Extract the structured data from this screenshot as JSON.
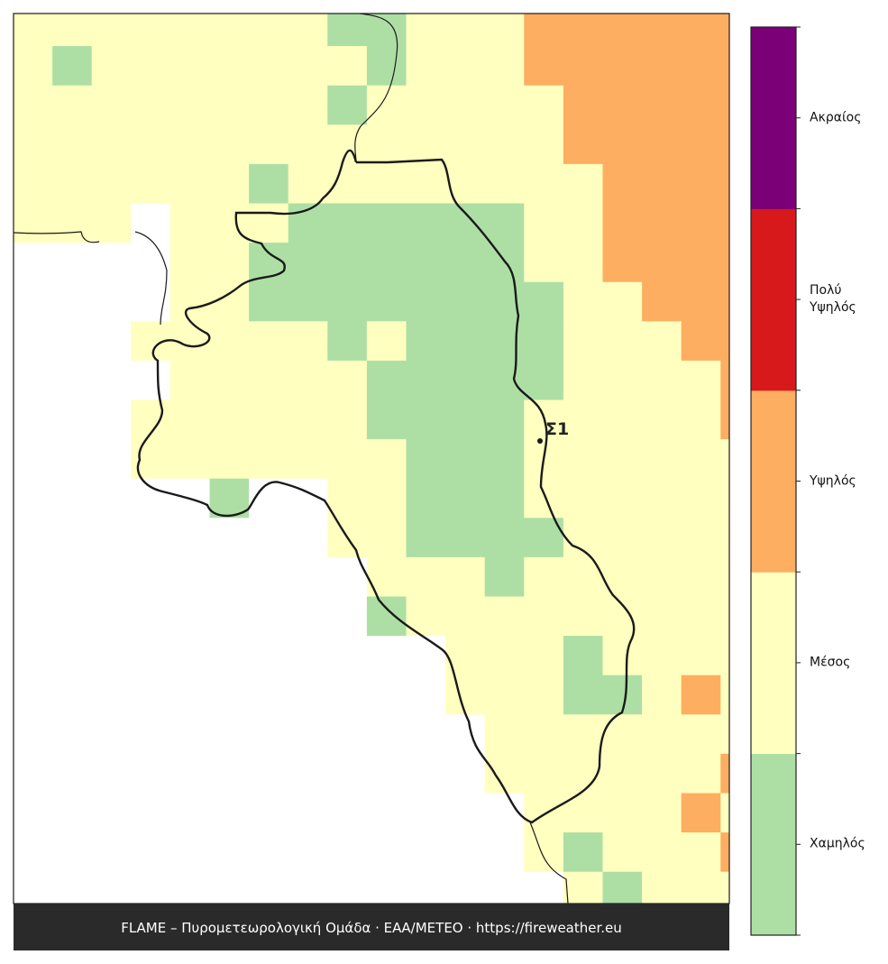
{
  "map": {
    "marker": {
      "label": "Σ1"
    },
    "footer": "FLAME – Πυρομετεωρολογική Ομάδα · ΕΑΑ/METEO · https://fireweather.eu",
    "legend": [
      {
        "label": "Χαμηλός",
        "color": "#addfa5"
      },
      {
        "label": "Μέσος",
        "color": "#ffffbf"
      },
      {
        "label": "Υψηλός",
        "color": "#fdae61"
      },
      {
        "label": "Πολύ Υψηλός",
        "color": "#d7191c"
      },
      {
        "label": "Ακραίος",
        "color": "#7b0077"
      }
    ],
    "cells": [
      [
        2,
        2,
        2,
        2,
        2,
        2,
        2,
        2,
        1,
        1,
        2,
        2,
        2,
        3,
        3,
        3,
        3,
        3,
        3
      ],
      [
        2,
        1,
        2,
        2,
        2,
        2,
        2,
        2,
        2,
        1,
        2,
        2,
        2,
        3,
        3,
        3,
        3,
        3,
        3
      ],
      [
        2,
        2,
        2,
        2,
        2,
        2,
        2,
        2,
        1,
        2,
        2,
        2,
        2,
        2,
        3,
        3,
        3,
        3,
        3
      ],
      [
        2,
        2,
        2,
        2,
        2,
        2,
        2,
        2,
        2,
        2,
        2,
        2,
        2,
        2,
        3,
        3,
        3,
        3,
        3
      ],
      [
        2,
        2,
        2,
        2,
        2,
        2,
        1,
        2,
        2,
        2,
        2,
        2,
        2,
        2,
        2,
        3,
        3,
        3,
        3
      ],
      [
        2,
        2,
        2,
        0,
        2,
        2,
        2,
        1,
        1,
        1,
        1,
        1,
        1,
        2,
        2,
        3,
        3,
        3,
        3
      ],
      [
        0,
        0,
        0,
        0,
        2,
        2,
        1,
        1,
        1,
        1,
        1,
        1,
        1,
        2,
        2,
        3,
        3,
        3,
        3
      ],
      [
        0,
        0,
        0,
        0,
        2,
        2,
        1,
        1,
        1,
        1,
        1,
        1,
        1,
        1,
        2,
        2,
        3,
        3,
        3
      ],
      [
        0,
        0,
        0,
        2,
        2,
        2,
        2,
        2,
        1,
        2,
        1,
        1,
        1,
        1,
        2,
        2,
        2,
        3,
        3
      ],
      [
        0,
        0,
        0,
        0,
        2,
        2,
        2,
        2,
        2,
        1,
        1,
        1,
        1,
        1,
        2,
        2,
        2,
        2,
        3
      ],
      [
        0,
        0,
        0,
        2,
        2,
        2,
        2,
        2,
        2,
        1,
        1,
        1,
        1,
        2,
        2,
        2,
        2,
        2,
        3
      ],
      [
        0,
        0,
        0,
        2,
        2,
        2,
        2,
        2,
        2,
        2,
        1,
        1,
        1,
        2,
        2,
        2,
        2,
        2,
        2
      ],
      [
        0,
        0,
        0,
        0,
        0,
        1,
        0,
        0,
        2,
        2,
        1,
        1,
        1,
        2,
        2,
        2,
        2,
        2,
        2
      ],
      [
        0,
        0,
        0,
        0,
        0,
        0,
        0,
        0,
        2,
        2,
        1,
        1,
        1,
        1,
        2,
        2,
        2,
        2,
        2
      ],
      [
        0,
        0,
        0,
        0,
        0,
        0,
        0,
        0,
        0,
        2,
        2,
        2,
        1,
        2,
        2,
        2,
        2,
        2,
        2
      ],
      [
        0,
        0,
        0,
        0,
        0,
        0,
        0,
        0,
        0,
        1,
        2,
        2,
        2,
        2,
        2,
        2,
        2,
        2,
        2
      ],
      [
        0,
        0,
        0,
        0,
        0,
        0,
        0,
        0,
        0,
        0,
        0,
        2,
        2,
        2,
        1,
        2,
        2,
        2,
        2
      ],
      [
        0,
        0,
        0,
        0,
        0,
        0,
        0,
        0,
        0,
        0,
        0,
        2,
        2,
        2,
        1,
        1,
        2,
        3,
        2
      ],
      [
        0,
        0,
        0,
        0,
        0,
        0,
        0,
        0,
        0,
        0,
        0,
        0,
        2,
        2,
        2,
        2,
        2,
        2,
        2
      ],
      [
        0,
        0,
        0,
        0,
        0,
        0,
        0,
        0,
        0,
        0,
        0,
        0,
        2,
        2,
        2,
        2,
        2,
        2,
        3
      ],
      [
        0,
        0,
        0,
        0,
        0,
        0,
        0,
        0,
        0,
        0,
        0,
        0,
        0,
        2,
        2,
        2,
        2,
        3,
        2
      ],
      [
        0,
        0,
        0,
        0,
        0,
        0,
        0,
        0,
        0,
        0,
        0,
        0,
        0,
        2,
        1,
        2,
        2,
        2,
        3
      ],
      [
        0,
        0,
        0,
        0,
        0,
        0,
        0,
        0,
        0,
        0,
        0,
        0,
        0,
        0,
        2,
        1,
        2,
        2,
        2
      ]
    ]
  }
}
